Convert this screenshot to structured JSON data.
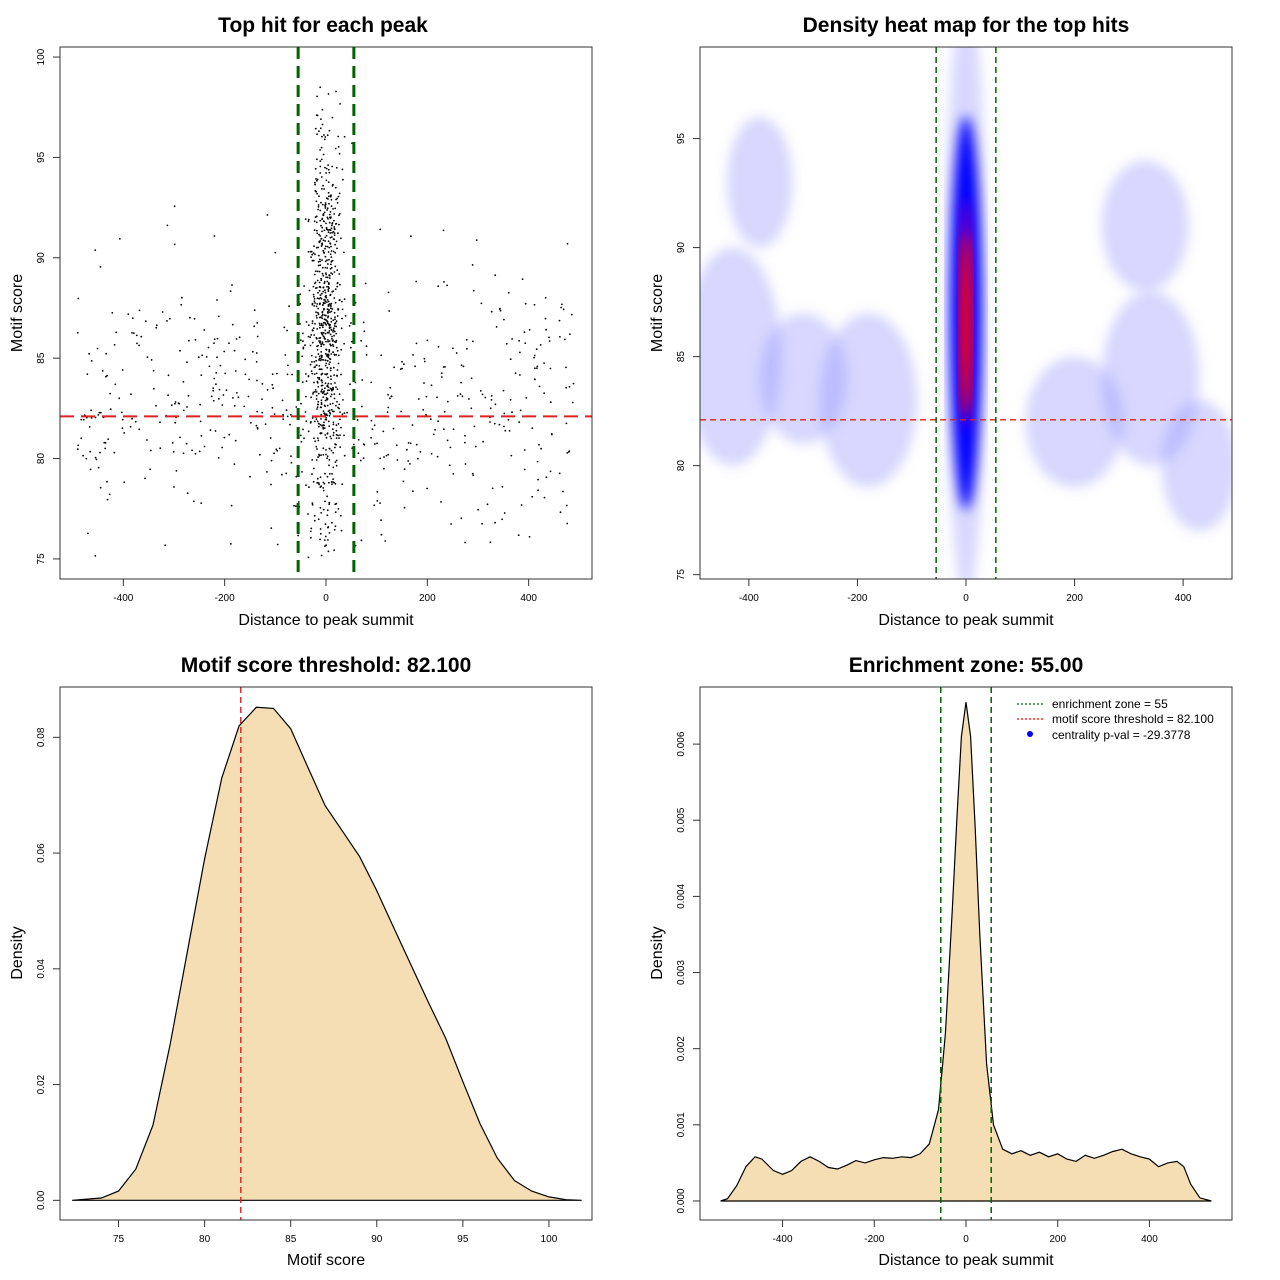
{
  "chart_data": [
    {
      "id": "scatter",
      "type": "scatter",
      "title": "Top hit for each peak",
      "xlabel": "Distance to peak summit",
      "ylabel": "Motif score",
      "xlim": [
        -525,
        525
      ],
      "ylim": [
        74,
        100.5
      ],
      "xticks": [
        -400,
        -200,
        0,
        200,
        400
      ],
      "yticks": [
        75,
        80,
        85,
        90,
        95,
        100
      ],
      "vlines": [
        -55,
        55
      ],
      "hline": 82.1,
      "point_clusters": [
        {
          "name": "background",
          "n": 560,
          "x_range": [
            -490,
            490
          ],
          "y_mean": 83,
          "y_sd": 3.3
        },
        {
          "name": "central",
          "n": 800,
          "x_mean": 0,
          "x_sd": 17,
          "y_mean": 86.5,
          "y_sd": 4.8
        }
      ]
    },
    {
      "id": "heatmap",
      "type": "heatmap",
      "title": "Density heat map for the top hits",
      "xlabel": "Distance to peak summit",
      "ylabel": "Motif score",
      "xlim": [
        -490,
        490
      ],
      "ylim": [
        74.8,
        99.2
      ],
      "xticks": [
        -400,
        -200,
        0,
        200,
        400
      ],
      "yticks": [
        75,
        80,
        85,
        90,
        95
      ],
      "vlines": [
        -55,
        55
      ],
      "hline": 82.1,
      "peak": {
        "x": 0,
        "y": 87,
        "x_sd": 25,
        "y_sd": 4.2
      },
      "background_blobs": [
        {
          "x": -430,
          "y": 85,
          "x_sd": 90,
          "y_sd": 5
        },
        {
          "x": -300,
          "y": 84,
          "x_sd": 80,
          "y_sd": 3
        },
        {
          "x": -180,
          "y": 83,
          "x_sd": 90,
          "y_sd": 4
        },
        {
          "x": 200,
          "y": 82,
          "x_sd": 90,
          "y_sd": 3
        },
        {
          "x": 340,
          "y": 84,
          "x_sd": 90,
          "y_sd": 4
        },
        {
          "x": 430,
          "y": 80,
          "x_sd": 70,
          "y_sd": 3
        },
        {
          "x": -380,
          "y": 93,
          "x_sd": 60,
          "y_sd": 3
        },
        {
          "x": 330,
          "y": 91,
          "x_sd": 80,
          "y_sd": 3
        }
      ]
    },
    {
      "id": "density-score",
      "type": "area",
      "title": "Motif score threshold: 82.100",
      "xlabel": "Motif score",
      "ylabel": "Density",
      "xlim": [
        71.6,
        102.5
      ],
      "ylim": [
        -0.0034,
        0.0887
      ],
      "xticks": [
        75,
        80,
        85,
        90,
        95,
        100
      ],
      "yticks": [
        0.0,
        0.02,
        0.04,
        0.06,
        0.08
      ],
      "ytick_labels": [
        "0.00",
        "0.02",
        "0.04",
        "0.06",
        "0.08"
      ],
      "vline": 82.1,
      "fill": "#f5deb3",
      "x": [
        72.3,
        74,
        75,
        76,
        77,
        78,
        79,
        80,
        81,
        82,
        83,
        84,
        85,
        86,
        87,
        88,
        89,
        90,
        91,
        92,
        93,
        94,
        95,
        96,
        97,
        98,
        99,
        100,
        101,
        101.9
      ],
      "y": [
        0.0,
        0.0004,
        0.0016,
        0.0054,
        0.013,
        0.027,
        0.043,
        0.059,
        0.073,
        0.082,
        0.0852,
        0.085,
        0.0815,
        0.0748,
        0.0682,
        0.0638,
        0.0594,
        0.0535,
        0.047,
        0.0406,
        0.0342,
        0.028,
        0.0205,
        0.0132,
        0.0073,
        0.0034,
        0.0016,
        0.0006,
        0.0001,
        0.0
      ]
    },
    {
      "id": "density-distance",
      "type": "area",
      "title": "Enrichment zone: 55.00",
      "xlabel": "Distance to peak summit",
      "ylabel": "Density",
      "xlim": [
        -580,
        580
      ],
      "ylim": [
        -0.00025,
        0.00675
      ],
      "xticks": [
        -400,
        -200,
        0,
        200,
        400
      ],
      "yticks": [
        0.0,
        0.001,
        0.002,
        0.003,
        0.004,
        0.005,
        0.006
      ],
      "ytick_labels": [
        "0.000",
        "0.001",
        "0.002",
        "0.003",
        "0.004",
        "0.005",
        "0.006"
      ],
      "vlines": [
        -55,
        55
      ],
      "fill": "#f5deb3",
      "x": [
        -535,
        -520,
        -500,
        -480,
        -460,
        -445,
        -420,
        -400,
        -380,
        -360,
        -340,
        -320,
        -300,
        -280,
        -260,
        -240,
        -220,
        -200,
        -180,
        -160,
        -140,
        -120,
        -100,
        -80,
        -60,
        -45,
        -30,
        -20,
        -10,
        0,
        10,
        20,
        30,
        45,
        60,
        80,
        100,
        120,
        140,
        160,
        180,
        200,
        220,
        240,
        260,
        280,
        300,
        320,
        340,
        360,
        380,
        400,
        420,
        440,
        460,
        475,
        490,
        510,
        535
      ],
      "y": [
        0.0,
        3e-05,
        0.0002,
        0.00045,
        0.00058,
        0.00055,
        0.0004,
        0.00035,
        0.0004,
        0.00052,
        0.00058,
        0.00052,
        0.00044,
        0.00042,
        0.00047,
        0.00053,
        0.0005,
        0.00054,
        0.00057,
        0.00056,
        0.00058,
        0.00057,
        0.00062,
        0.00075,
        0.0012,
        0.0022,
        0.0038,
        0.005,
        0.0061,
        0.00655,
        0.0061,
        0.0049,
        0.0035,
        0.0018,
        0.001,
        0.00068,
        0.00062,
        0.00066,
        0.0006,
        0.00064,
        0.00058,
        0.00062,
        0.00055,
        0.00052,
        0.0006,
        0.00056,
        0.0006,
        0.00065,
        0.00068,
        0.00062,
        0.00058,
        0.00055,
        0.00045,
        0.0005,
        0.00052,
        0.00045,
        0.00022,
        4e-05,
        0.0
      ]
    }
  ],
  "legend": {
    "items": [
      {
        "label": "enrichment zone = 55",
        "style": "dotted",
        "color": "#006400"
      },
      {
        "label": "motif score threshold = 82.100",
        "style": "dotted",
        "color": "#ff0000"
      },
      {
        "label": "centrality p-val = -29.3778",
        "style": "point",
        "color": "#0000ff"
      }
    ]
  },
  "colors": {
    "green_line": "#006400",
    "red_line": "#dd2222",
    "fill": "#f5deb3"
  }
}
